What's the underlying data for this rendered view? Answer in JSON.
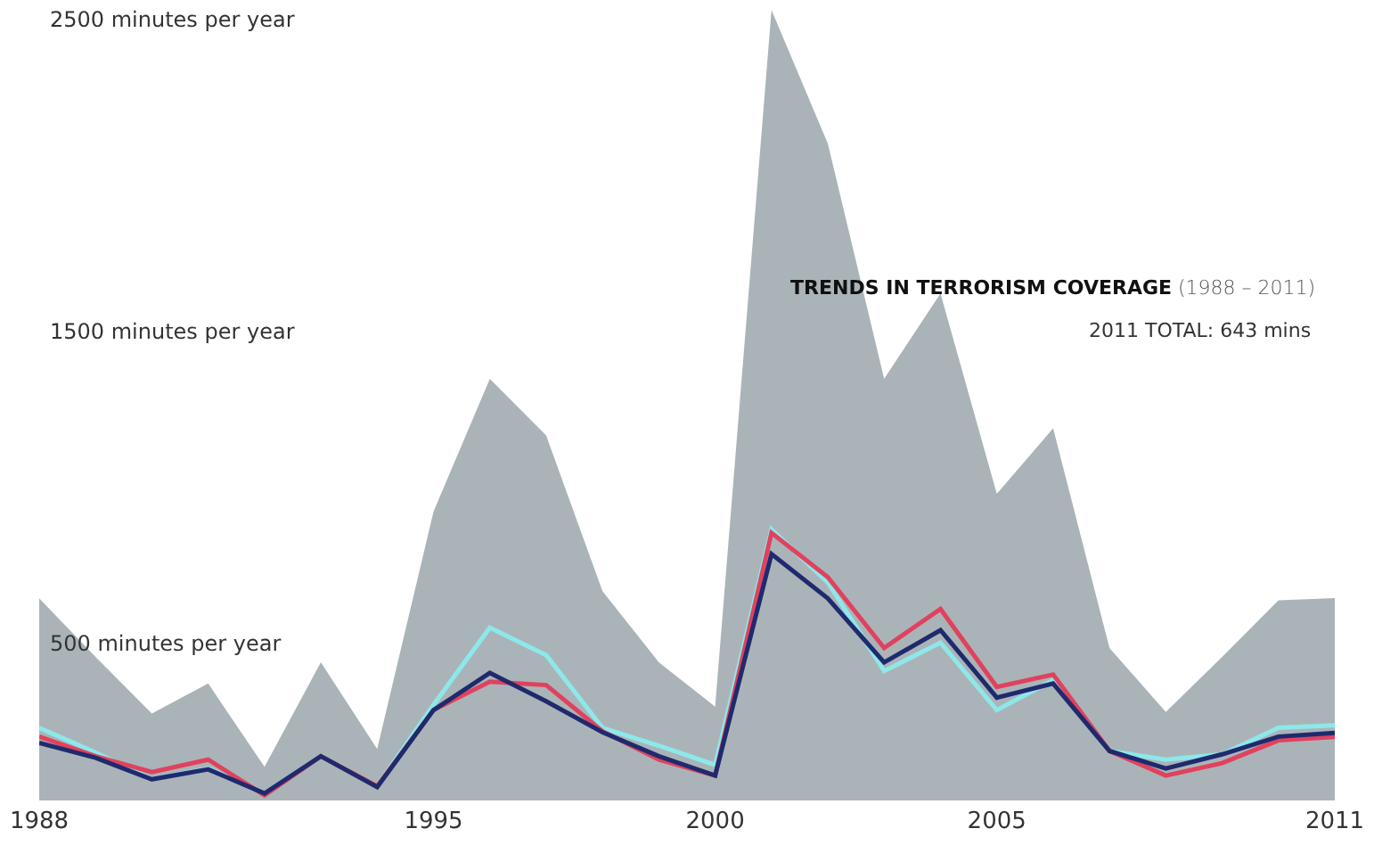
{
  "chart_data": {
    "type": "line",
    "title": "TRENDS IN TERRORISM COVERAGE",
    "subtitle": "(1988 – 2011)",
    "annotations": [
      "2011 TOTAL: 643 mins"
    ],
    "x": [
      1988,
      1989,
      1990,
      1991,
      1992,
      1993,
      1994,
      1995,
      1996,
      1997,
      1998,
      1999,
      2000,
      2001,
      2002,
      2003,
      2004,
      2005,
      2006,
      2007,
      2008,
      2009,
      2010,
      2011
    ],
    "series": [
      {
        "type": "area",
        "color": "#aab4b8",
        "values": [
          642,
          454,
          273,
          369,
          102,
          437,
          159,
          920,
          1346,
          1164,
          665,
          437,
          295,
          2528,
          2100,
          1346,
          1619,
          977,
          1187,
          483,
          278,
          454,
          636,
          643
        ]
      },
      {
        "color": "#8de8ea",
        "values": [
          227,
          148,
          62,
          97,
          17,
          136,
          40,
          301,
          548,
          460,
          227,
          170,
          108,
          863,
          693,
          409,
          500,
          284,
          380,
          153,
          125,
          142,
          227,
          235
        ]
      },
      {
        "color": "#e0425e",
        "values": [
          199,
          136,
          85,
          125,
          11,
          136,
          40,
          284,
          375,
          364,
          216,
          125,
          74,
          852,
          710,
          483,
          608,
          358,
          398,
          153,
          74,
          114,
          187,
          198
        ]
      },
      {
        "color": "#1f2a6e",
        "values": [
          179,
          131,
          62,
          94,
          17,
          136,
          37,
          284,
          403,
          312,
          213,
          136,
          74,
          784,
          642,
          437,
          540,
          324,
          369,
          153,
          97,
          142,
          199,
          211
        ]
      }
    ],
    "xlim": [
      1988,
      2011
    ],
    "xticks": [
      1988,
      1995,
      2000,
      2005,
      2011
    ],
    "ylim": [
      0,
      2560
    ],
    "yticks": [
      {
        "value": 500,
        "label": "500 minutes per year"
      },
      {
        "value": 1500,
        "label": "1500 minutes per year"
      },
      {
        "value": 2500,
        "label": "2500 minutes per year"
      }
    ],
    "grid": false,
    "marker": "none",
    "line_style": "solid"
  }
}
